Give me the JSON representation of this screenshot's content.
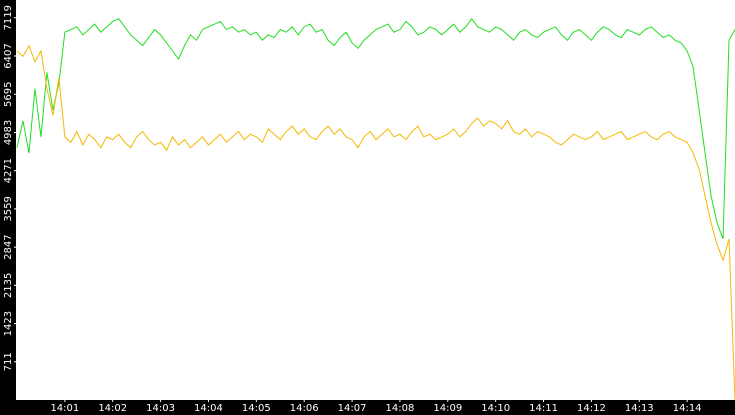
{
  "chart_data": {
    "type": "line",
    "x": [
      0,
      0.125,
      0.25,
      0.375,
      0.5,
      0.625,
      0.75,
      0.875,
      1,
      1.125,
      1.25,
      1.375,
      1.5,
      1.625,
      1.75,
      1.875,
      2,
      2.125,
      2.25,
      2.375,
      2.5,
      2.625,
      2.75,
      2.875,
      3,
      3.125,
      3.25,
      3.375,
      3.5,
      3.625,
      3.75,
      3.875,
      4,
      4.125,
      4.25,
      4.375,
      4.5,
      4.625,
      4.75,
      4.875,
      5,
      5.125,
      5.25,
      5.375,
      5.5,
      5.625,
      5.75,
      5.875,
      6,
      6.125,
      6.25,
      6.375,
      6.5,
      6.625,
      6.75,
      6.875,
      7,
      7.125,
      7.25,
      7.375,
      7.5,
      7.625,
      7.75,
      7.875,
      8,
      8.125,
      8.25,
      8.375,
      8.5,
      8.625,
      8.75,
      8.875,
      9,
      9.125,
      9.25,
      9.375,
      9.5,
      9.625,
      9.75,
      9.875,
      10,
      10.125,
      10.25,
      10.375,
      10.5,
      10.625,
      10.75,
      10.875,
      11,
      11.125,
      11.25,
      11.375,
      11.5,
      11.625,
      11.75,
      11.875,
      12,
      12.125,
      12.25,
      12.375,
      12.5,
      12.625,
      12.75,
      12.875,
      13,
      13.125,
      13.25,
      13.375,
      13.5,
      13.625,
      13.75,
      13.875,
      14,
      14.125,
      14.25,
      14.375,
      14.5,
      14.625,
      14.75,
      14.875,
      15
    ],
    "series": [
      {
        "color": "#22dd22",
        "values": [
          4700,
          5200,
          4600,
          5800,
          4900,
          6100,
          5400,
          5900,
          6850,
          6900,
          6950,
          6800,
          6900,
          7000,
          6850,
          6950,
          7050,
          7100,
          6950,
          6800,
          6700,
          6600,
          6750,
          6900,
          6800,
          6650,
          6500,
          6350,
          6600,
          6800,
          6700,
          6900,
          6950,
          7000,
          7050,
          6900,
          6950,
          6850,
          6900,
          6800,
          6850,
          6700,
          6800,
          6750,
          6900,
          6850,
          6950,
          6800,
          6950,
          7000,
          6850,
          6900,
          6700,
          6600,
          6750,
          6850,
          6650,
          6550,
          6700,
          6800,
          6900,
          6950,
          7000,
          6850,
          6900,
          7050,
          6950,
          6800,
          6850,
          6950,
          6900,
          6800,
          6900,
          7000,
          6850,
          6950,
          7100,
          6950,
          6900,
          6850,
          6950,
          6900,
          6800,
          6700,
          6850,
          6900,
          6800,
          6750,
          6850,
          6900,
          6950,
          6800,
          6700,
          6850,
          6900,
          6800,
          6700,
          6850,
          6950,
          6900,
          6800,
          6750,
          6900,
          6850,
          6800,
          6900,
          6950,
          6850,
          6750,
          6800,
          6700,
          6650,
          6500,
          6200,
          5400,
          4600,
          3800,
          3300,
          3000,
          6700,
          6900
        ]
      },
      {
        "color": "#f5b800",
        "values": [
          6500,
          6400,
          6600,
          6300,
          6500,
          5800,
          5300,
          6000,
          4900,
          4800,
          5000,
          4750,
          4950,
          4850,
          4700,
          4900,
          4850,
          4950,
          4800,
          4700,
          4900,
          5000,
          4850,
          4750,
          4800,
          4650,
          4900,
          4750,
          4850,
          4700,
          4800,
          4900,
          4750,
          4850,
          4950,
          4800,
          4900,
          5000,
          4850,
          4950,
          4900,
          4800,
          5050,
          4950,
          4850,
          5000,
          5100,
          4950,
          5050,
          4900,
          4850,
          5000,
          5100,
          4950,
          5050,
          4900,
          4850,
          4700,
          4900,
          5000,
          4850,
          4950,
          5050,
          4900,
          4950,
          4850,
          5000,
          5100,
          4900,
          4950,
          4850,
          4900,
          4950,
          5050,
          4900,
          5000,
          5150,
          5250,
          5100,
          5200,
          5150,
          5050,
          5200,
          5000,
          4950,
          5050,
          4900,
          5000,
          4950,
          4900,
          4800,
          4750,
          4850,
          4950,
          4900,
          4850,
          4900,
          5000,
          4850,
          4900,
          4950,
          5000,
          4850,
          4900,
          4950,
          5000,
          4900,
          4850,
          4950,
          5000,
          4900,
          4850,
          4800,
          4600,
          4300,
          3800,
          3300,
          2900,
          2600,
          3000,
          0
        ]
      }
    ],
    "xlim": [
      0,
      15
    ],
    "xticks": [
      {
        "value": 1,
        "label": "14:01"
      },
      {
        "value": 2,
        "label": "14:02"
      },
      {
        "value": 3,
        "label": "14:03"
      },
      {
        "value": 4,
        "label": "14:04"
      },
      {
        "value": 5,
        "label": "14:05"
      },
      {
        "value": 6,
        "label": "14:06"
      },
      {
        "value": 7,
        "label": "14:07"
      },
      {
        "value": 8,
        "label": "14:08"
      },
      {
        "value": 9,
        "label": "14:09"
      },
      {
        "value": 10,
        "label": "14:10"
      },
      {
        "value": 11,
        "label": "14:11"
      },
      {
        "value": 12,
        "label": "14:12"
      },
      {
        "value": 13,
        "label": "14:13"
      },
      {
        "value": 14,
        "label": "14:14"
      }
    ],
    "ylim": [
      0,
      7450
    ],
    "yticks": [
      711,
      1423,
      2135,
      2847,
      3559,
      4271,
      4983,
      5695,
      6407,
      7119
    ]
  }
}
